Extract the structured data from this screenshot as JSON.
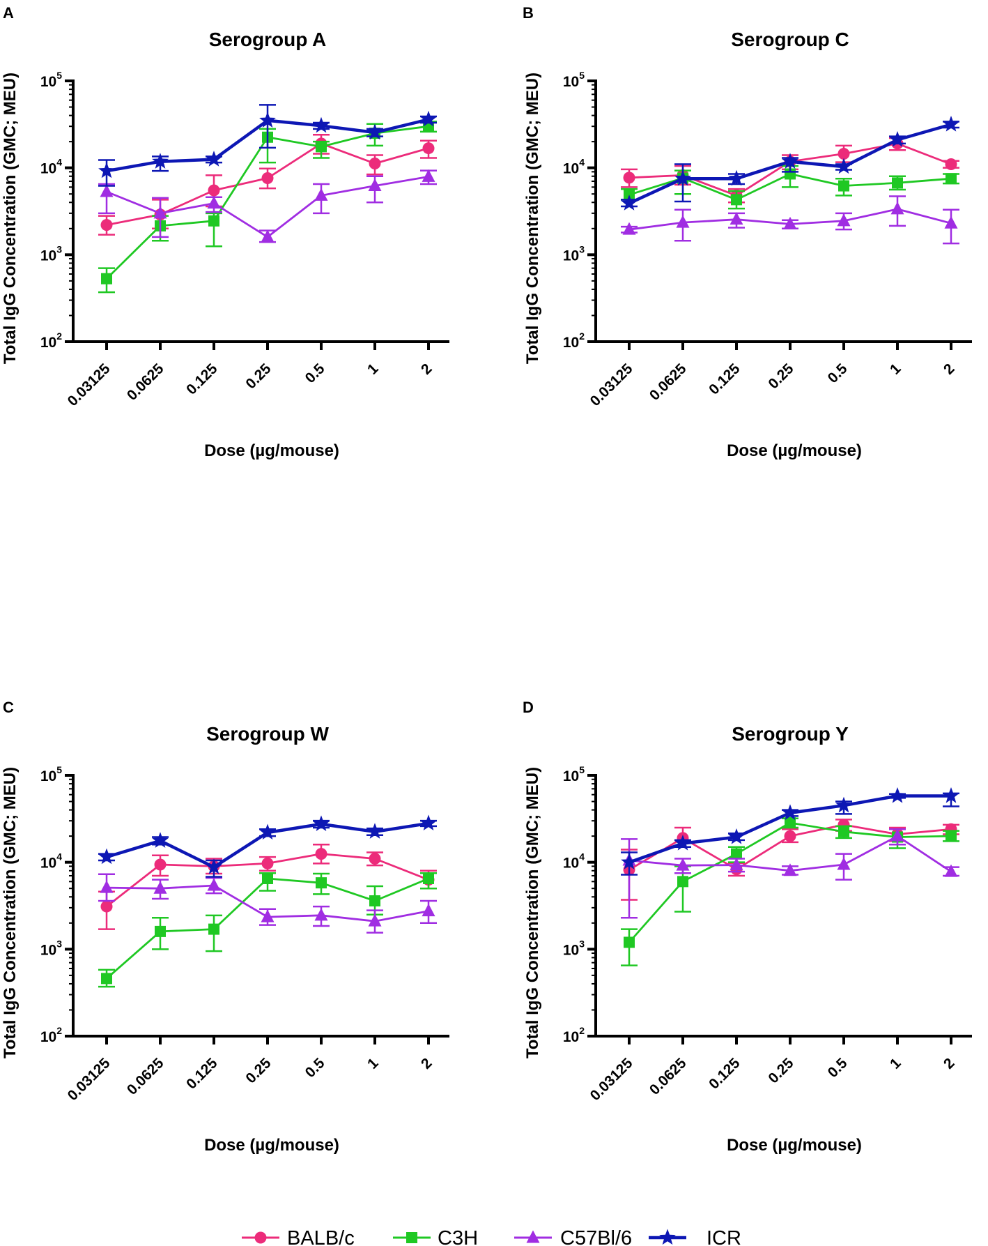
{
  "chart_data": [
    {
      "type": "line",
      "panel": "A",
      "title": "Serogroup A",
      "xlabel": "Dose (µg/mouse)",
      "ylabel": "Total IgG Concentration (GMC; MEU)",
      "yscale": "log",
      "ylim": [
        100,
        100000
      ],
      "yticks": [
        {
          "base": "10",
          "exp": "2"
        },
        {
          "base": "10",
          "exp": "3"
        },
        {
          "base": "10",
          "exp": "4"
        },
        {
          "base": "10",
          "exp": "5"
        }
      ],
      "categories": [
        "0.03125",
        "0.0625",
        "0.125",
        "0.25",
        "0.5",
        "1",
        "2"
      ],
      "series": [
        {
          "name": "BALB/c",
          "values": [
            2200,
            2900,
            5500,
            7600,
            19000,
            11200,
            16800
          ],
          "lower": [
            1700,
            2000,
            3600,
            5800,
            14500,
            8400,
            13000
          ],
          "upper": [
            2800,
            4300,
            8200,
            9800,
            24000,
            14000,
            20500
          ]
        },
        {
          "name": "C3H",
          "values": [
            530,
            2150,
            2450,
            22500,
            17500,
            25000,
            30000
          ],
          "lower": [
            370,
            1450,
            1250,
            11500,
            13000,
            18000,
            26000
          ],
          "upper": [
            700,
            2800,
            3000,
            28000,
            20000,
            32000,
            34000
          ]
        },
        {
          "name": "C57Bl/6",
          "values": [
            5300,
            3000,
            3900,
            1600,
            4800,
            6200,
            7900
          ],
          "lower": [
            3000,
            1600,
            3100,
            1400,
            3000,
            4000,
            6500
          ],
          "upper": [
            6500,
            4500,
            4600,
            1900,
            6500,
            8000,
            9300
          ]
        },
        {
          "name": "ICR",
          "values": [
            9200,
            11800,
            12500,
            35000,
            30500,
            25500,
            36000
          ],
          "lower": [
            6200,
            9200,
            11500,
            17000,
            28000,
            23000,
            33000
          ],
          "upper": [
            12300,
            13500,
            13500,
            53000,
            33000,
            28000,
            39000
          ]
        }
      ]
    },
    {
      "type": "line",
      "panel": "B",
      "title": "Serogroup C",
      "xlabel": "Dose (µg/mouse)",
      "ylabel": "Total IgG Concentration (GMC; MEU)",
      "yscale": "log",
      "ylim": [
        100,
        100000
      ],
      "yticks": [
        {
          "base": "10",
          "exp": "2"
        },
        {
          "base": "10",
          "exp": "3"
        },
        {
          "base": "10",
          "exp": "4"
        },
        {
          "base": "10",
          "exp": "5"
        }
      ],
      "categories": [
        "0.03125",
        "0.0625",
        "0.125",
        "0.25",
        "0.5",
        "1",
        "2"
      ],
      "series": [
        {
          "name": "BALB/c",
          "values": [
            7700,
            8200,
            4800,
            11800,
            14500,
            19000,
            11000
          ],
          "lower": [
            6000,
            6400,
            4000,
            9600,
            11600,
            16000,
            10000
          ],
          "upper": [
            9600,
            10500,
            5700,
            14000,
            18000,
            22000,
            12000
          ]
        },
        {
          "name": "C3H",
          "values": [
            4900,
            7600,
            4300,
            8500,
            6200,
            6700,
            7500
          ],
          "lower": [
            4300,
            5000,
            3400,
            6000,
            4800,
            5600,
            6600
          ],
          "upper": [
            5700,
            9300,
            5400,
            10500,
            7500,
            8000,
            8500
          ]
        },
        {
          "name": "C57Bl/6",
          "values": [
            1950,
            2350,
            2550,
            2250,
            2450,
            3350,
            2300
          ],
          "lower": [
            1800,
            1450,
            2050,
            2000,
            1950,
            2150,
            1350
          ],
          "upper": [
            2100,
            3300,
            3000,
            2500,
            3000,
            4700,
            3300
          ]
        },
        {
          "name": "ICR",
          "values": [
            3900,
            7500,
            7500,
            11800,
            10300,
            21000,
            31500
          ],
          "lower": [
            3600,
            4100,
            6500,
            9000,
            9500,
            19000,
            29000
          ],
          "upper": [
            4300,
            11000,
            8500,
            13000,
            11000,
            23000,
            34000
          ]
        }
      ]
    },
    {
      "type": "line",
      "panel": "C",
      "title": "Serogroup W",
      "xlabel": "Dose (µg/mouse)",
      "ylabel": "Total IgG Concentration (GMC; MEU)",
      "yscale": "log",
      "ylim": [
        100,
        100000
      ],
      "yticks": [
        {
          "base": "10",
          "exp": "2"
        },
        {
          "base": "10",
          "exp": "3"
        },
        {
          "base": "10",
          "exp": "4"
        },
        {
          "base": "10",
          "exp": "5"
        }
      ],
      "categories": [
        "0.03125",
        "0.0625",
        "0.125",
        "0.25",
        "0.5",
        "1",
        "2"
      ],
      "series": [
        {
          "name": "BALB/c",
          "values": [
            3100,
            9400,
            9000,
            9700,
            12500,
            11000,
            6300
          ],
          "lower": [
            1700,
            7000,
            7400,
            8000,
            9700,
            9200,
            5000
          ],
          "upper": [
            4600,
            12000,
            11000,
            11500,
            16000,
            13000,
            8000
          ]
        },
        {
          "name": "C3H",
          "values": [
            460,
            1600,
            1700,
            6500,
            5800,
            3600,
            6500
          ],
          "lower": [
            370,
            1000,
            950,
            4700,
            4300,
            2500,
            5000
          ],
          "upper": [
            580,
            2300,
            2450,
            7500,
            7400,
            5300,
            7500
          ]
        },
        {
          "name": "C57Bl/6",
          "values": [
            5100,
            5000,
            5400,
            2350,
            2450,
            2100,
            2750
          ],
          "lower": [
            3600,
            3800,
            4400,
            1900,
            1850,
            1550,
            2000
          ],
          "upper": [
            7300,
            6300,
            6600,
            2900,
            3100,
            2800,
            3600
          ]
        },
        {
          "name": "ICR",
          "values": [
            11500,
            17700,
            8800,
            22000,
            27500,
            22500,
            28000
          ],
          "lower": [
            10500,
            16000,
            6800,
            20000,
            25000,
            20500,
            26000
          ],
          "upper": [
            12500,
            19500,
            10500,
            24000,
            30000,
            24500,
            30000
          ]
        }
      ]
    },
    {
      "type": "line",
      "panel": "D",
      "title": "Serogroup Y",
      "xlabel": "Dose (µg/mouse)",
      "ylabel": "Total IgG Concentration (GMC; MEU)",
      "yscale": "log",
      "ylim": [
        100,
        100000
      ],
      "yticks": [
        {
          "base": "10",
          "exp": "2"
        },
        {
          "base": "10",
          "exp": "3"
        },
        {
          "base": "10",
          "exp": "4"
        },
        {
          "base": "10",
          "exp": "5"
        }
      ],
      "categories": [
        "0.03125",
        "0.0625",
        "0.125",
        "0.25",
        "0.5",
        "1",
        "2"
      ],
      "series": [
        {
          "name": "BALB/c",
          "values": [
            8200,
            19000,
            8300,
            20000,
            27000,
            21000,
            24000
          ],
          "lower": [
            3700,
            15000,
            7000,
            17000,
            23000,
            17500,
            21000
          ],
          "upper": [
            14000,
            25000,
            9800,
            24000,
            31000,
            25000,
            27000
          ]
        },
        {
          "name": "C3H",
          "values": [
            1200,
            6000,
            12500,
            28500,
            22500,
            19500,
            20000
          ],
          "lower": [
            650,
            2700,
            10000,
            25000,
            19000,
            14500,
            17500
          ],
          "upper": [
            1700,
            9000,
            15000,
            32000,
            26000,
            24000,
            23000
          ]
        },
        {
          "name": "C57Bl/6",
          "values": [
            10500,
            9200,
            9300,
            8000,
            9400,
            20000,
            7800
          ],
          "lower": [
            2300,
            7500,
            7800,
            7200,
            6300,
            16000,
            7000
          ],
          "upper": [
            18500,
            11000,
            11000,
            9000,
            12500,
            24000,
            8800
          ]
        },
        {
          "name": "ICR",
          "values": [
            10000,
            16500,
            19500,
            37000,
            45000,
            58000,
            58000
          ],
          "lower": [
            7200,
            15000,
            18000,
            34000,
            36000,
            55000,
            44000
          ],
          "upper": [
            13000,
            18000,
            21500,
            40000,
            50000,
            61000,
            62000
          ]
        }
      ]
    }
  ],
  "legend": [
    {
      "name": "BALB/c",
      "marker": "circle",
      "color": "#ec2b7a"
    },
    {
      "name": "C3H",
      "marker": "square",
      "color": "#1fc823"
    },
    {
      "name": "C57Bl/6",
      "marker": "triangle",
      "color": "#a02de2"
    },
    {
      "name": "ICR",
      "marker": "star",
      "color": "#0d17b4"
    }
  ]
}
